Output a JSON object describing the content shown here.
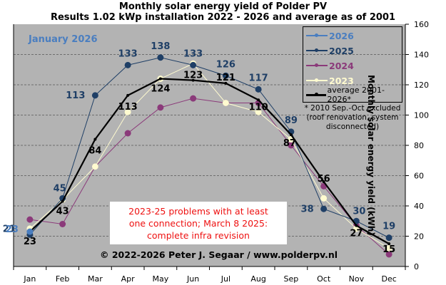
{
  "chart_data": {
    "type": "line",
    "title": "Monthly solar energy yield of Polder PV",
    "subtitle": "Results 1.02 kWp installation 2022 - 2026 and average as of 2001",
    "xlabel": "",
    "ylabel": "Monthly solar energy yield (kWh)",
    "ylim": [
      0,
      160
    ],
    "yticks": [
      0,
      20,
      40,
      60,
      80,
      100,
      120,
      140,
      160
    ],
    "grid": true,
    "legend_position": "top-right",
    "categories": [
      "Jan",
      "Feb",
      "Mar",
      "Apr",
      "May",
      "Jun",
      "Jul",
      "Aug",
      "Sep",
      "Oct",
      "Nov",
      "Dec"
    ],
    "series": [
      {
        "name": "2026",
        "color": "#4a7ec0",
        "values": [
          23,
          null,
          null,
          null,
          null,
          null,
          null,
          null,
          null,
          null,
          null,
          null
        ]
      },
      {
        "name": "2025",
        "color": "#1f3f66",
        "values": [
          21,
          45,
          113,
          133,
          138,
          133,
          126,
          117,
          89,
          38,
          30,
          19
        ]
      },
      {
        "name": "2024",
        "color": "#8b3a7a",
        "values": [
          31,
          28,
          66,
          88,
          105,
          111,
          108,
          108,
          80,
          53,
          27,
          8
        ]
      },
      {
        "name": "2023",
        "color": "#fffbd0",
        "values": [
          25,
          44,
          66,
          102,
          124,
          134,
          108,
          102,
          84,
          45,
          25,
          12
        ]
      },
      {
        "name": "average 2001-2026*",
        "color": "#000000",
        "values": [
          23,
          43,
          84,
          113,
          124,
          123,
          121,
          110,
          87,
          56,
          27,
          15
        ]
      }
    ],
    "data_labels": {
      "2026": [
        23,
        null,
        null,
        null,
        null,
        null,
        null,
        null,
        null,
        null,
        null,
        null
      ],
      "2025": [
        21,
        45,
        113,
        133,
        138,
        133,
        126,
        117,
        89,
        38,
        30,
        19
      ],
      "average": [
        23,
        43,
        84,
        113,
        124,
        123,
        121,
        110,
        87,
        56,
        27,
        15
      ]
    },
    "annotations": {
      "current_month": "January 2026",
      "footnote": [
        "* 2010 Sep.-Oct excluded",
        "(roof renovation, system",
        "disconnected)"
      ],
      "note": [
        "2023-25 problems  with at least",
        "one connection; March 8 2025:",
        "complete infra revision"
      ],
      "copyright": "© 2022-2026 Peter J. Segaar / www.polderpv.nl"
    }
  }
}
